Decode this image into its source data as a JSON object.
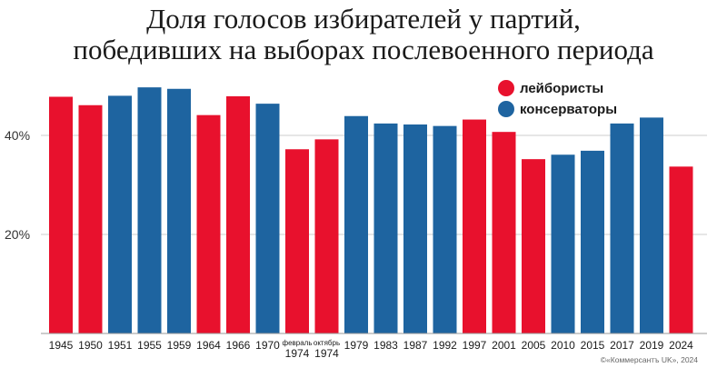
{
  "title_lines": [
    "Доля голосов избирателей у партий,",
    "победивших на выборах послевоенного периода"
  ],
  "credit": "©«Коммерсантъ UK», 2024",
  "colors": {
    "labour": "#e8112d",
    "conservative": "#1e64a0",
    "grid": "#cccccc"
  },
  "chart_data": {
    "type": "bar",
    "title": "Доля голосов избирателей у партий, победивших на выборах послевоенного периода",
    "xlabel": "",
    "ylabel": "",
    "ylim": [
      0,
      52
    ],
    "yticks": [
      20,
      40
    ],
    "ytick_labels": [
      "20%",
      "40%"
    ],
    "grid": true,
    "legend_position": "top-right",
    "legend": [
      {
        "party": "labour",
        "label": "лейбористы"
      },
      {
        "party": "conservative",
        "label": "консерваторы"
      }
    ],
    "categories": [
      [
        "1945"
      ],
      [
        "1950"
      ],
      [
        "1951"
      ],
      [
        "1955"
      ],
      [
        "1959"
      ],
      [
        "1964"
      ],
      [
        "1966"
      ],
      [
        "1970"
      ],
      [
        "февраль",
        "1974"
      ],
      [
        "октябрь",
        "1974"
      ],
      [
        "1979"
      ],
      [
        "1983"
      ],
      [
        "1987"
      ],
      [
        "1992"
      ],
      [
        "1997"
      ],
      [
        "2001"
      ],
      [
        "2005"
      ],
      [
        "2010"
      ],
      [
        "2015"
      ],
      [
        "2017"
      ],
      [
        "2019"
      ],
      [
        "2024"
      ]
    ],
    "values": [
      47.8,
      46.1,
      48.0,
      49.7,
      49.4,
      44.1,
      47.9,
      46.4,
      37.2,
      39.2,
      43.9,
      42.4,
      42.2,
      41.9,
      43.2,
      40.7,
      35.2,
      36.1,
      36.9,
      42.4,
      43.6,
      33.7
    ],
    "party": [
      "labour",
      "labour",
      "conservative",
      "conservative",
      "conservative",
      "labour",
      "labour",
      "conservative",
      "labour",
      "labour",
      "conservative",
      "conservative",
      "conservative",
      "conservative",
      "labour",
      "labour",
      "labour",
      "conservative",
      "conservative",
      "conservative",
      "conservative",
      "labour"
    ]
  }
}
